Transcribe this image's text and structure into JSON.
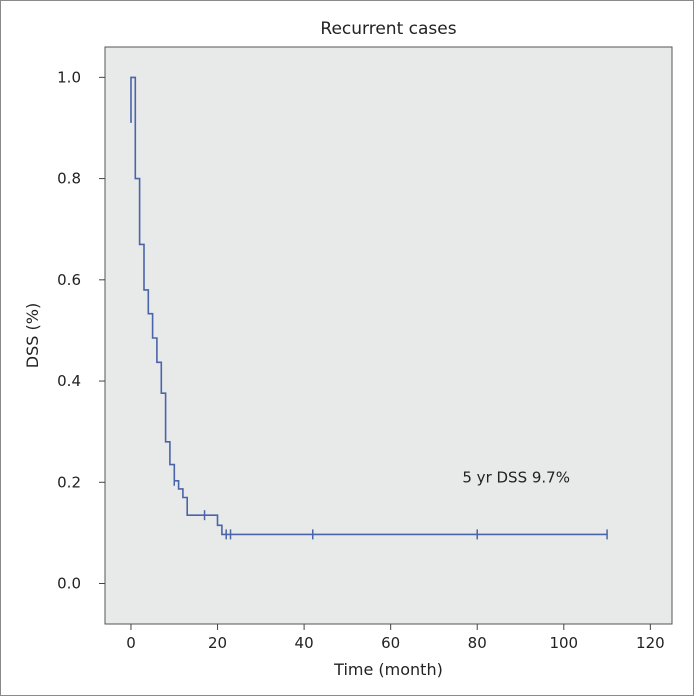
{
  "chart_data": {
    "type": "line",
    "title": "Recurrent cases",
    "xlabel": "Time (month)",
    "ylabel": "DSS (%)",
    "xlim": [
      -6,
      125
    ],
    "ylim": [
      -0.08,
      1.06
    ],
    "x_ticks": [
      0,
      20,
      40,
      60,
      80,
      100,
      120
    ],
    "y_ticks": [
      0.0,
      0.2,
      0.4,
      0.6,
      0.8,
      1.0
    ],
    "y_tick_labels": [
      "0.0",
      "0.2",
      "0.4",
      "0.6",
      "0.8",
      "1.0"
    ],
    "grid": false,
    "plot_background": "#e8eae9",
    "series_color": "#4a64aa",
    "series": [
      {
        "steps": [
          [
            0,
            0.91
          ],
          [
            0,
            1.0
          ],
          [
            1,
            1.0
          ],
          [
            1,
            0.8
          ],
          [
            2,
            0.8
          ],
          [
            2,
            0.67
          ],
          [
            3,
            0.67
          ],
          [
            3,
            0.58
          ],
          [
            4,
            0.58
          ],
          [
            4,
            0.533
          ],
          [
            5,
            0.533
          ],
          [
            5,
            0.485
          ],
          [
            6,
            0.485
          ],
          [
            6,
            0.437
          ],
          [
            7,
            0.437
          ],
          [
            7,
            0.376
          ],
          [
            8,
            0.376
          ],
          [
            8,
            0.28
          ],
          [
            9,
            0.28
          ],
          [
            9,
            0.235
          ],
          [
            10,
            0.235
          ],
          [
            10,
            0.203
          ],
          [
            11,
            0.203
          ],
          [
            11,
            0.187
          ],
          [
            12,
            0.187
          ],
          [
            12,
            0.17
          ],
          [
            13,
            0.17
          ],
          [
            13,
            0.135
          ],
          [
            20,
            0.135
          ],
          [
            20,
            0.115
          ],
          [
            21,
            0.115
          ],
          [
            21,
            0.097
          ],
          [
            110,
            0.097
          ]
        ],
        "censored": [
          [
            10,
            0.203
          ],
          [
            17,
            0.135
          ],
          [
            22,
            0.097
          ],
          [
            23,
            0.097
          ],
          [
            42,
            0.097
          ],
          [
            80,
            0.097
          ],
          [
            110,
            0.097
          ]
        ]
      }
    ],
    "annotations": [
      {
        "text": "5 yr DSS 9.7%",
        "x": 89,
        "y": 0.2
      }
    ]
  }
}
